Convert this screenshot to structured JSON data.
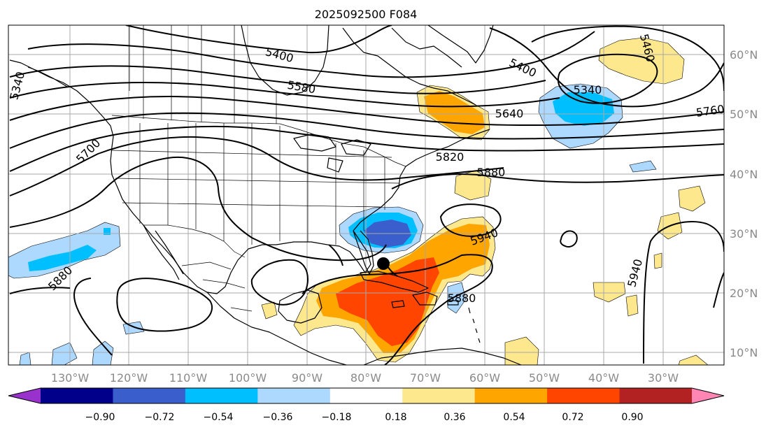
{
  "title": "2025092500 F084",
  "lon_labels": [
    "130°W",
    "120°W",
    "110°W",
    "100°W",
    "90°W",
    "80°W",
    "70°W",
    "60°W",
    "50°W",
    "40°W",
    "30°W"
  ],
  "lat_labels": [
    "60°N",
    "50°N",
    "40°N",
    "30°N",
    "20°N",
    "10°N"
  ],
  "colorbar": {
    "ticks": [
      "−0.90",
      "−0.72",
      "−0.54",
      "−0.36",
      "−0.18",
      "0.18",
      "0.36",
      "0.54",
      "0.72",
      "0.90"
    ],
    "colors": [
      "#9932cc",
      "#00008b",
      "#3a5fcd",
      "#00bfff",
      "#add8ff",
      "#ffffff",
      "#fee88e",
      "#ffa500",
      "#ff4500",
      "#b22222",
      "#ff85b4"
    ]
  },
  "contour_labels": [
    "5400",
    "5340",
    "5580",
    "5700",
    "5460",
    "5400",
    "5340",
    "5640",
    "5760",
    "5820",
    "5880",
    "5940",
    "5880",
    "5880",
    "5940"
  ],
  "marker": "storm-center"
}
